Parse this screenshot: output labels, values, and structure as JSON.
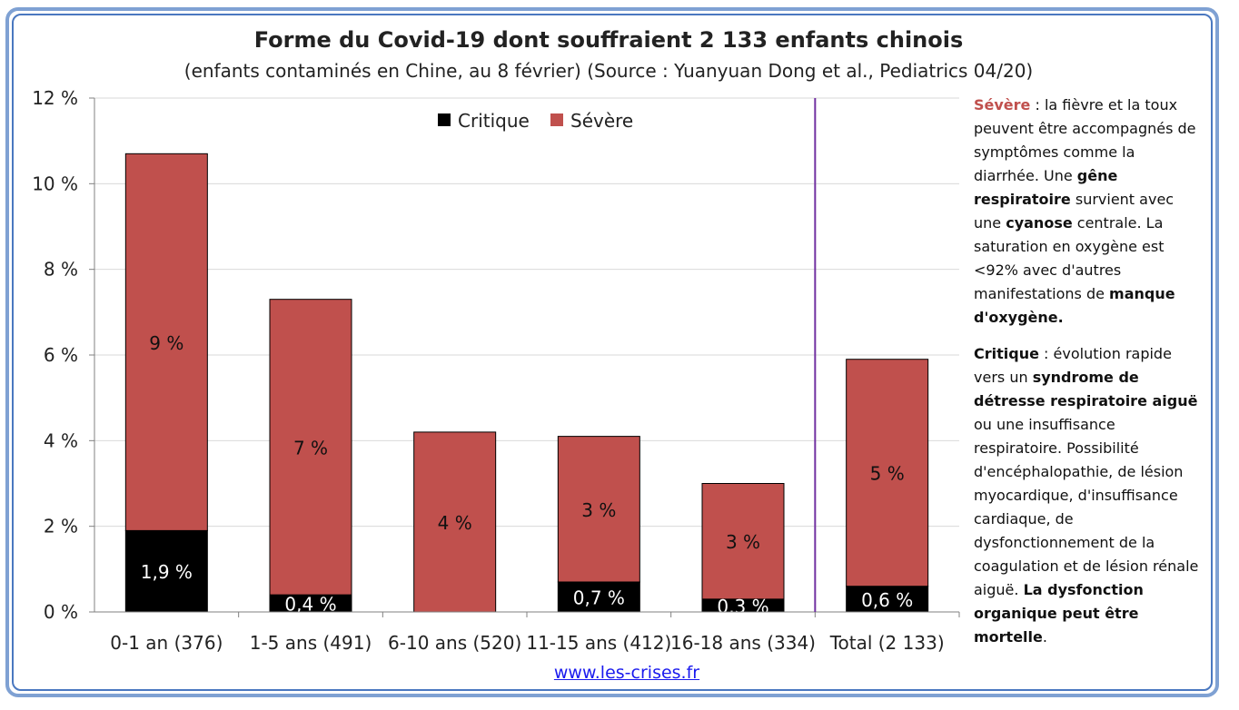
{
  "title": "Forme du Covid-19 dont souffraient 2 133 enfants chinois",
  "subtitle": "(enfants contaminés en Chine, au 8 février) (Source : Yuanyuan Dong et al., Pediatrics 04/20)",
  "source_link": "www.les-crises.fr",
  "colors": {
    "critique": "#000000",
    "severe": "#c0504d",
    "divider": "#7030a0"
  },
  "notes": {
    "severe": {
      "term": "Sévère",
      "t1": " : la fièvre et la toux peuvent être accompagnés de symptômes comme la diarrhée. Une ",
      "b1": "gêne respiratoire",
      "t2": " survient avec une ",
      "b2": "cyanose",
      "t3": " centrale. La saturation en oxygène est <92% avec d'autres manifestations de ",
      "b3": "manque d'oxygène."
    },
    "critique": {
      "term": "Critique",
      "t1": " : évolution rapide vers un ",
      "b1": "syndrome de détresse respiratoire aiguë",
      "t2": " ou une insuffisance respiratoire. Possibilité d'encéphalopathie, de lésion myocardique, d'insuffisance cardiaque, de dysfonctionnement de la coagulation et de lésion rénale aiguë. ",
      "b2": "La dysfonction organique peut être mortelle",
      "t3": "."
    }
  },
  "chart_data": {
    "type": "bar",
    "stacked": true,
    "categories": [
      "0-1 an (376)",
      "1-5 ans (491)",
      "6-10 ans (520)",
      "11-15 ans (412)",
      "16-18 ans (334)",
      "Total (2 133)"
    ],
    "series": [
      {
        "name": "Critique",
        "values": [
          1.9,
          0.4,
          0.0,
          0.7,
          0.3,
          0.6
        ],
        "labels": [
          "1,9 %",
          "0,4 %",
          "",
          "0,7 %",
          "0,3 %",
          "0,6 %"
        ]
      },
      {
        "name": "Sévère",
        "values": [
          8.8,
          6.9,
          4.2,
          3.4,
          2.7,
          5.3
        ],
        "labels": [
          "9 %",
          "7 %",
          "4 %",
          "3 %",
          "3 %",
          "5 %"
        ]
      }
    ],
    "ylim": [
      0,
      12
    ],
    "yticks": [
      0,
      2,
      4,
      6,
      8,
      10,
      12
    ],
    "ytick_labels": [
      "0 %",
      "2 %",
      "4 %",
      "6 %",
      "8 %",
      "10 %",
      "12 %"
    ],
    "grid": true,
    "legend": "top-center",
    "divider_after_category": 4
  }
}
